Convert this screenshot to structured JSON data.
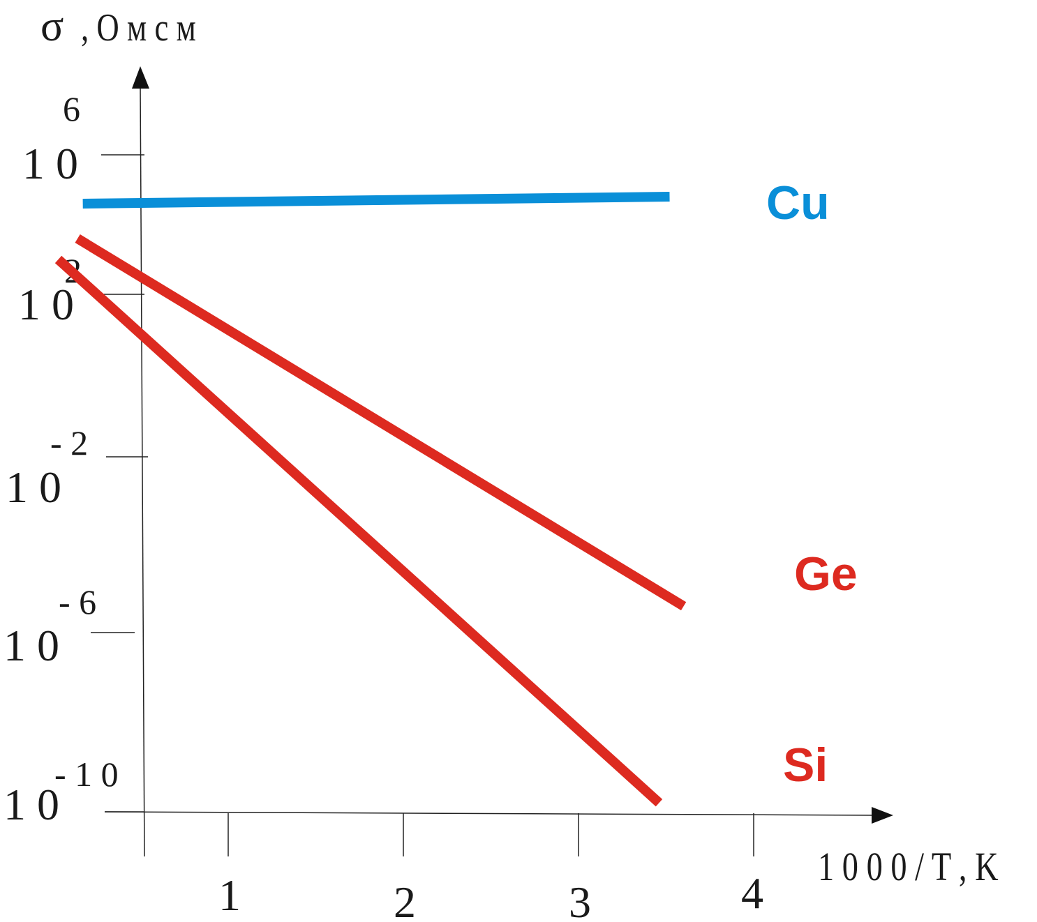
{
  "chart_data": {
    "type": "line",
    "xlabel": "1 0 0 0 / T , K",
    "ylabel_symbol": "σ",
    "ylabel_unit": ", О м с м",
    "x_ticks": [
      {
        "value": 1,
        "label": "1"
      },
      {
        "value": 2,
        "label": "2"
      },
      {
        "value": 3,
        "label": "3"
      },
      {
        "value": 4,
        "label": "4"
      }
    ],
    "y_ticks": [
      {
        "exponent": 6,
        "base": "1 0",
        "power": "6"
      },
      {
        "exponent": 2,
        "base": "1 0",
        "power": "2"
      },
      {
        "exponent": -2,
        "base": "1 0",
        "power": "- 2"
      },
      {
        "exponent": -6,
        "base": "1 0",
        "power": "- 6"
      },
      {
        "exponent": -10,
        "base": "1 0",
        "power": "- 1 0"
      }
    ],
    "y_scale": "log10",
    "xlim": [
      0.5,
      4.8
    ],
    "grid": false,
    "legend": "labels at line ends",
    "series": [
      {
        "name": "Cu",
        "color": "#0a8fd8",
        "points": [
          [
            0.17,
            4.6
          ],
          [
            3.52,
            4.8
          ]
        ]
      },
      {
        "name": "Ge",
        "color": "#dd2a20",
        "points": [
          [
            0.14,
            3.6
          ],
          [
            3.6,
            -5.4
          ]
        ]
      },
      {
        "name": "Si",
        "color": "#dd2a20",
        "points": [
          [
            0.03,
            3.0
          ],
          [
            3.46,
            -9.8
          ]
        ]
      }
    ]
  }
}
